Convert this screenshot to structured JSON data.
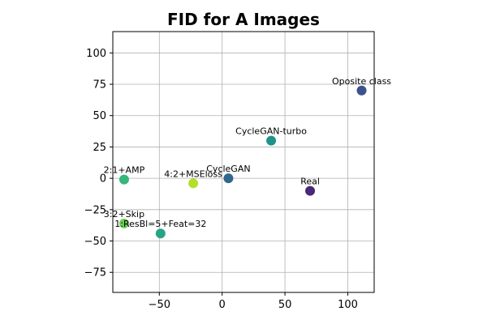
{
  "chart_data": {
    "type": "scatter",
    "title": "FID for A Images",
    "xlabel": "",
    "ylabel": "",
    "xlim": [
      -87,
      121
    ],
    "ylim": [
      -91,
      117
    ],
    "xticks": [
      -50,
      0,
      50,
      100
    ],
    "yticks": [
      -75,
      -50,
      -25,
      0,
      25,
      50,
      75,
      100
    ],
    "grid": true,
    "points": [
      {
        "label": "Oposite class",
        "x": 111,
        "y": 70,
        "color": "#3b528b"
      },
      {
        "label": "CycleGAN-turbo",
        "x": 39,
        "y": 30,
        "color": "#21918c"
      },
      {
        "label": "CycleGAN",
        "x": 5,
        "y": 0,
        "color": "#31688e"
      },
      {
        "label": "Real",
        "x": 70,
        "y": -10,
        "color": "#482878"
      },
      {
        "label": "4:2+MSEloss",
        "x": -23,
        "y": -4,
        "color": "#b5de2b"
      },
      {
        "label": "2:1+AMP",
        "x": -78,
        "y": -1,
        "color": "#35b779"
      },
      {
        "label": "3:2+Skip",
        "x": -78,
        "y": -36,
        "color": "#6ece58"
      },
      {
        "label": "1:ResBl=5+Feat=32",
        "x": -49,
        "y": -44,
        "color": "#26a584"
      }
    ]
  }
}
